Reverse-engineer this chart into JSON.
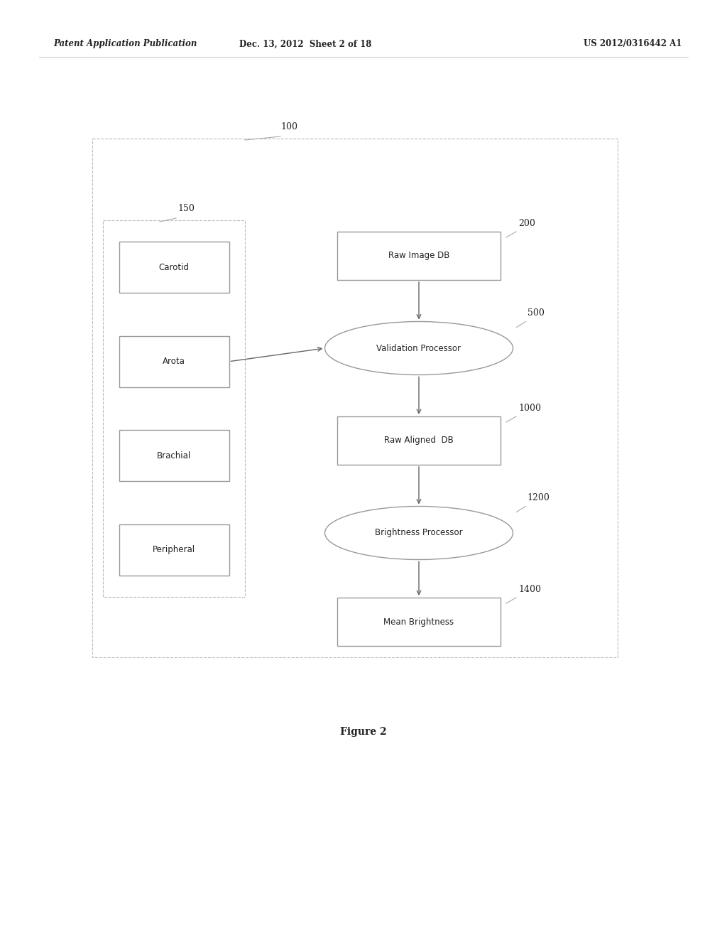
{
  "bg_color": "#ffffff",
  "header_left": "Patent Application Publication",
  "header_mid": "Dec. 13, 2012  Sheet 2 of 18",
  "header_right": "US 2012/0316442 A1",
  "figure_caption": "Figure 2",
  "diagram_ref": "100",
  "left_group_ref": "150",
  "left_items": [
    "Carotid",
    "Arota",
    "Brachial",
    "Peripheral"
  ],
  "raw_image_db_label": "Raw Image DB",
  "raw_image_db_ref": "200",
  "validation_processor_label": "Validation Processor",
  "validation_processor_ref": "500",
  "raw_aligned_db_label": "Raw Aligned  DB",
  "raw_aligned_db_ref": "1000",
  "brightness_processor_label": "Brightness Processor",
  "brightness_processor_ref": "1200",
  "mean_brightness_label": "Mean Brightness",
  "mean_brightness_ref": "1400",
  "border_color": "#999999",
  "dash_color": "#bbbbbb",
  "text_color": "#222222",
  "arrow_color": "#666666",
  "header_fontsize": 8.5,
  "label_fontsize": 8.5,
  "ref_fontsize": 9,
  "caption_fontsize": 10
}
